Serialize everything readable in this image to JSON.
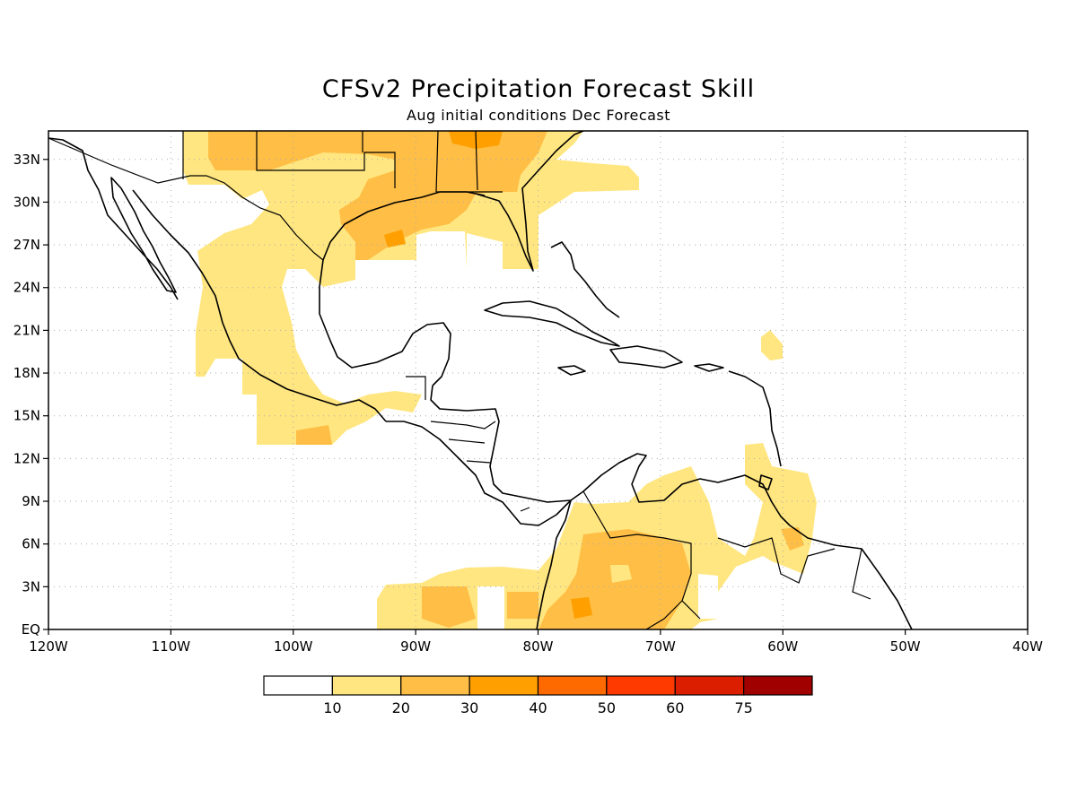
{
  "title": "CFSv2 Precipitation Forecast Skill",
  "subtitle": "Aug initial conditions  Dec Forecast",
  "map": {
    "lon_range": [
      -120,
      -40
    ],
    "lat_range": [
      0,
      35
    ],
    "grid": true,
    "x_tick_labels": [
      "120W",
      "110W",
      "100W",
      "90W",
      "80W",
      "70W",
      "60W",
      "50W",
      "40W"
    ],
    "y_tick_labels": [
      "EQ",
      "3N",
      "6N",
      "9N",
      "12N",
      "15N",
      "18N",
      "21N",
      "24N",
      "27N",
      "30N",
      "33N"
    ]
  },
  "colorbar": {
    "colors": [
      "#ffffff",
      "#ffe680",
      "#ffbe45",
      "#ffa000",
      "#ff6a00",
      "#ff3a00",
      "#dc1e00",
      "#a00000"
    ],
    "labels": [
      "10",
      "20",
      "30",
      "40",
      "50",
      "60",
      "75"
    ]
  },
  "regions": [
    {
      "name": "skill-10-20",
      "color": "#ffe680"
    },
    {
      "name": "skill-20-30",
      "color": "#ffbe45"
    },
    {
      "name": "skill-30-40",
      "color": "#ffa000"
    }
  ]
}
